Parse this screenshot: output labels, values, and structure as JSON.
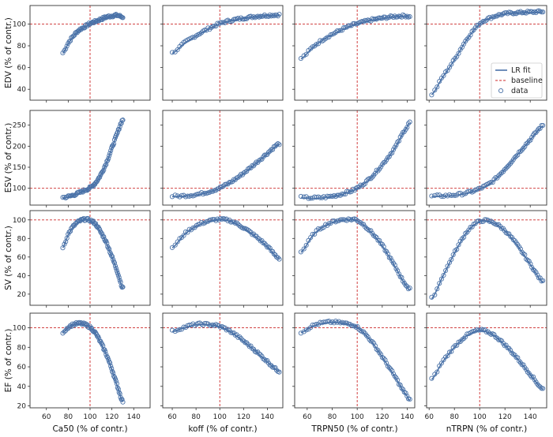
{
  "colors": {
    "fit": "#4a72a8",
    "data": "#4a72a8",
    "baseline": "#cc2a2a",
    "frame": "#333333"
  },
  "legend": {
    "placement": "center-right",
    "items": [
      "LR fit",
      "baseline",
      "data"
    ]
  },
  "chart_data": {
    "type": "scatter",
    "columns": [
      {
        "xlabel": "Ca50 (% of contr.)",
        "xlim": [
          45,
          155
        ],
        "xticks": [
          60,
          80,
          100,
          120,
          140
        ],
        "xrange": [
          75,
          130
        ]
      },
      {
        "xlabel": "koff (% of contr.)",
        "xlim": [
          52,
          153
        ],
        "xticks": [
          60,
          80,
          100,
          120,
          140
        ],
        "xrange": [
          60,
          150
        ]
      },
      {
        "xlabel": "TRPN50 (% of contr.)",
        "xlim": [
          50,
          146
        ],
        "xticks": [
          60,
          80,
          100,
          120,
          140
        ],
        "xrange": [
          55,
          142
        ]
      },
      {
        "xlabel": "nTRPN (% of contr.)",
        "xlim": [
          58,
          153
        ],
        "xticks": [
          60,
          80,
          100,
          120,
          140
        ],
        "xrange": [
          62,
          150
        ]
      }
    ],
    "rows": [
      {
        "ylabel": "EDV (% of contr.)",
        "ylim": [
          30,
          117
        ],
        "yticks": [
          40,
          60,
          80,
          100
        ]
      },
      {
        "ylabel": "ESV (% of contr.)",
        "ylim": [
          60,
          285
        ],
        "yticks": [
          100,
          150,
          200,
          250
        ]
      },
      {
        "ylabel": "SV (% of contr.)",
        "ylim": [
          8,
          110
        ],
        "yticks": [
          20,
          40,
          60,
          80,
          100
        ]
      },
      {
        "ylabel": "EF (% of contr.)",
        "ylim": [
          18,
          115
        ],
        "yticks": [
          20,
          40,
          60,
          80,
          100
        ]
      }
    ],
    "baseline": {
      "x": 100,
      "y": 100
    },
    "panels": [
      [
        {
          "x": [
            75,
            80,
            85,
            90,
            95,
            100,
            105,
            110,
            115,
            120,
            125,
            130
          ],
          "y": [
            73,
            82,
            89,
            94,
            97,
            100,
            102,
            104,
            106,
            107,
            107.5,
            106
          ]
        },
        {
          "x": [
            60,
            70,
            80,
            90,
            100,
            110,
            120,
            130,
            140,
            150
          ],
          "y": [
            73,
            82,
            89,
            95,
            100,
            103,
            105,
            106.5,
            107.5,
            108
          ]
        },
        {
          "x": [
            55,
            65,
            75,
            85,
            95,
            100,
            110,
            120,
            130,
            140,
            142
          ],
          "y": [
            68,
            79,
            87,
            93,
            98,
            100,
            103,
            105,
            106.5,
            107,
            106
          ]
        },
        {
          "x": [
            62,
            70,
            80,
            90,
            100,
            110,
            120,
            130,
            140,
            150
          ],
          "y": [
            35,
            50,
            67,
            86,
            100,
            106,
            109,
            110,
            110.5,
            111
          ]
        }
      ],
      [
        {
          "x": [
            75,
            80,
            85,
            90,
            95,
            100,
            105,
            110,
            115,
            120,
            125,
            130
          ],
          "y": [
            77,
            79,
            83,
            88,
            94,
            100,
            112,
            132,
            160,
            195,
            230,
            262
          ]
        },
        {
          "x": [
            60,
            70,
            80,
            90,
            100,
            110,
            120,
            130,
            140,
            150
          ],
          "y": [
            80,
            81,
            84,
            90,
            100,
            115,
            135,
            158,
            182,
            205
          ]
        },
        {
          "x": [
            55,
            65,
            75,
            85,
            95,
            100,
            110,
            120,
            130,
            140,
            142
          ],
          "y": [
            77,
            76,
            78,
            83,
            92,
            100,
            122,
            155,
            195,
            245,
            255
          ]
        },
        {
          "x": [
            62,
            70,
            80,
            90,
            100,
            110,
            120,
            130,
            140,
            150
          ],
          "y": [
            80,
            81,
            83,
            88,
            98,
            115,
            145,
            180,
            215,
            248
          ]
        }
      ],
      [
        {
          "x": [
            75,
            80,
            85,
            90,
            95,
            100,
            105,
            110,
            115,
            120,
            125,
            130
          ],
          "y": [
            70,
            84,
            93,
            98,
            100,
            99,
            95,
            86,
            75,
            60,
            44,
            26
          ]
        },
        {
          "x": [
            60,
            70,
            80,
            90,
            100,
            110,
            120,
            130,
            140,
            150
          ],
          "y": [
            70,
            84,
            93,
            98,
            100,
            98,
            91,
            82,
            71,
            58
          ]
        },
        {
          "x": [
            55,
            65,
            75,
            85,
            95,
            100,
            110,
            120,
            130,
            140,
            142
          ],
          "y": [
            65,
            84,
            94,
            99,
            100,
            99,
            88,
            72,
            50,
            28,
            25
          ]
        },
        {
          "x": [
            62,
            70,
            80,
            90,
            100,
            110,
            120,
            130,
            140,
            150
          ],
          "y": [
            15,
            37,
            64,
            87,
            98,
            97,
            88,
            72,
            52,
            33
          ]
        }
      ],
      [
        {
          "x": [
            75,
            80,
            85,
            90,
            95,
            100,
            105,
            110,
            115,
            120,
            125,
            130
          ],
          "y": [
            95,
            100,
            103,
            104,
            103,
            100,
            94,
            84,
            72,
            57,
            40,
            24
          ]
        },
        {
          "x": [
            60,
            70,
            80,
            90,
            100,
            110,
            120,
            130,
            140,
            150
          ],
          "y": [
            96,
            100,
            103,
            103,
            101,
            95,
            86,
            76,
            65,
            55
          ]
        },
        {
          "x": [
            55,
            65,
            75,
            85,
            95,
            100,
            110,
            120,
            130,
            140,
            142
          ],
          "y": [
            95,
            102,
            105,
            105,
            103,
            100,
            88,
            70,
            50,
            30,
            26
          ]
        },
        {
          "x": [
            62,
            70,
            80,
            90,
            100,
            110,
            120,
            130,
            140,
            150
          ],
          "y": [
            47,
            64,
            80,
            92,
            97,
            93,
            82,
            68,
            52,
            37
          ]
        }
      ]
    ]
  }
}
